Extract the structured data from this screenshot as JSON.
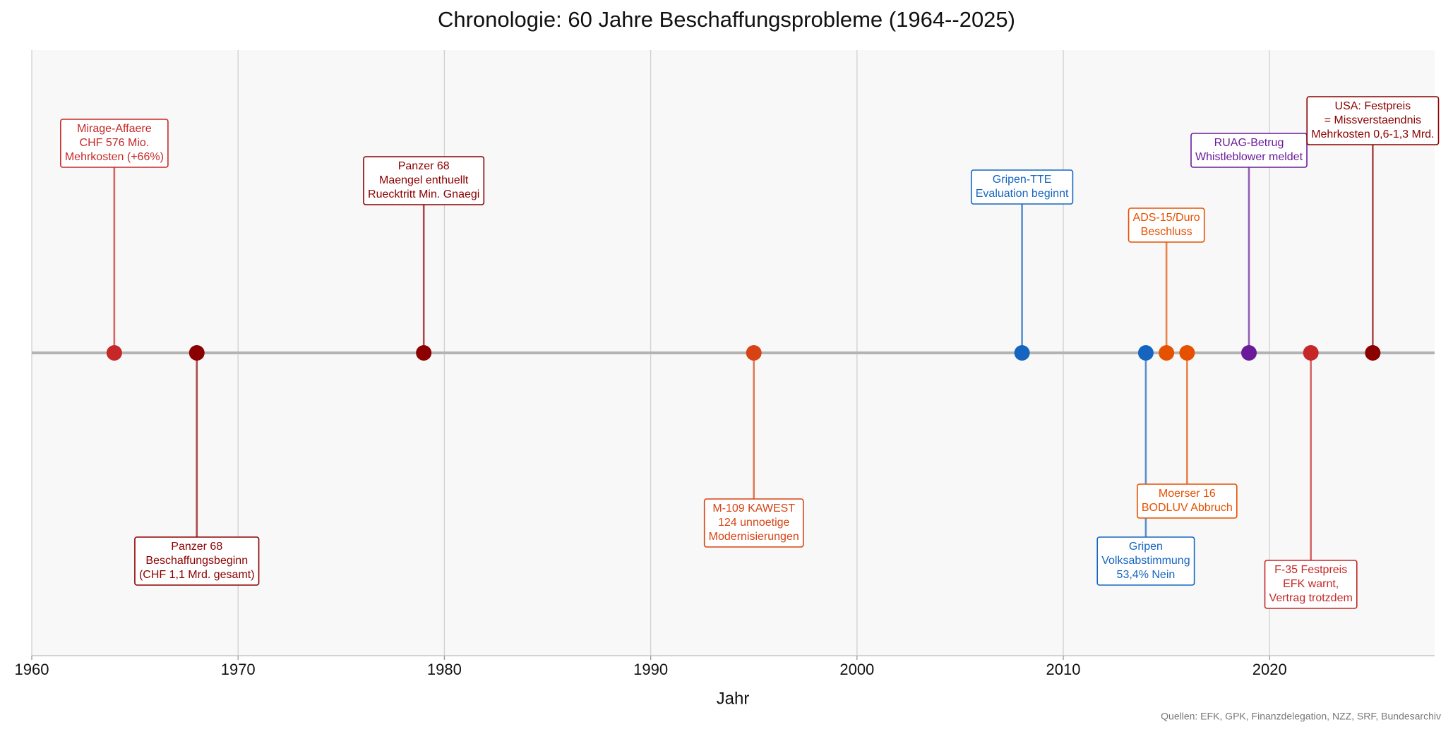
{
  "chart_data": {
    "type": "timeline",
    "title": "Chronologie: 60 Jahre Beschaffungsprobleme (1964--2025)",
    "xlabel": "Jahr",
    "source": "Quellen: EFK, GPK, Finanzdelegation, NZZ, SRF, Bundesarchiv",
    "xlim": [
      1960,
      2028
    ],
    "xticks": [
      1960,
      1970,
      1980,
      1990,
      2000,
      2010,
      2020
    ],
    "grid": true,
    "x": [
      1964,
      1968,
      1979,
      1995,
      2008,
      2014,
      2015,
      2016,
      2019,
      2022,
      2025
    ],
    "labels": [
      [
        "Mirage-Affaere",
        "CHF 576 Mio.",
        "Mehrkosten (+66%)"
      ],
      [
        "Panzer 68",
        "Beschaffungsbeginn",
        "(CHF 1,1 Mrd. gesamt)"
      ],
      [
        "Panzer 68",
        "Maengel enthuellt",
        "Ruecktritt Min. Gnaegi"
      ],
      [
        "M-109 KAWEST",
        "124 unnoetige",
        "Modernisierungen"
      ],
      [
        "Gripen-TTE",
        "Evaluation beginnt"
      ],
      [
        "Gripen",
        "Volksabstimmung",
        "53,4% Nein"
      ],
      [
        "ADS-15/Duro",
        "Beschluss"
      ],
      [
        "Moerser 16",
        "BODLUV Abbruch"
      ],
      [
        "RUAG-Betrug",
        "Whistleblower meldet"
      ],
      [
        "F-35 Festpreis",
        "EFK warnt,",
        "Vertrag trotzdem"
      ],
      [
        "USA: Festpreis",
        "= Missverstaendnis",
        "Mehrkosten 0,6-1,3 Mrd."
      ]
    ],
    "colors": [
      "#c62828",
      "#8b0000",
      "#8b0000",
      "#d84315",
      "#1565c0",
      "#1565c0",
      "#e65100",
      "#e65100",
      "#6a1b9a",
      "#c62828",
      "#8b0000"
    ]
  }
}
